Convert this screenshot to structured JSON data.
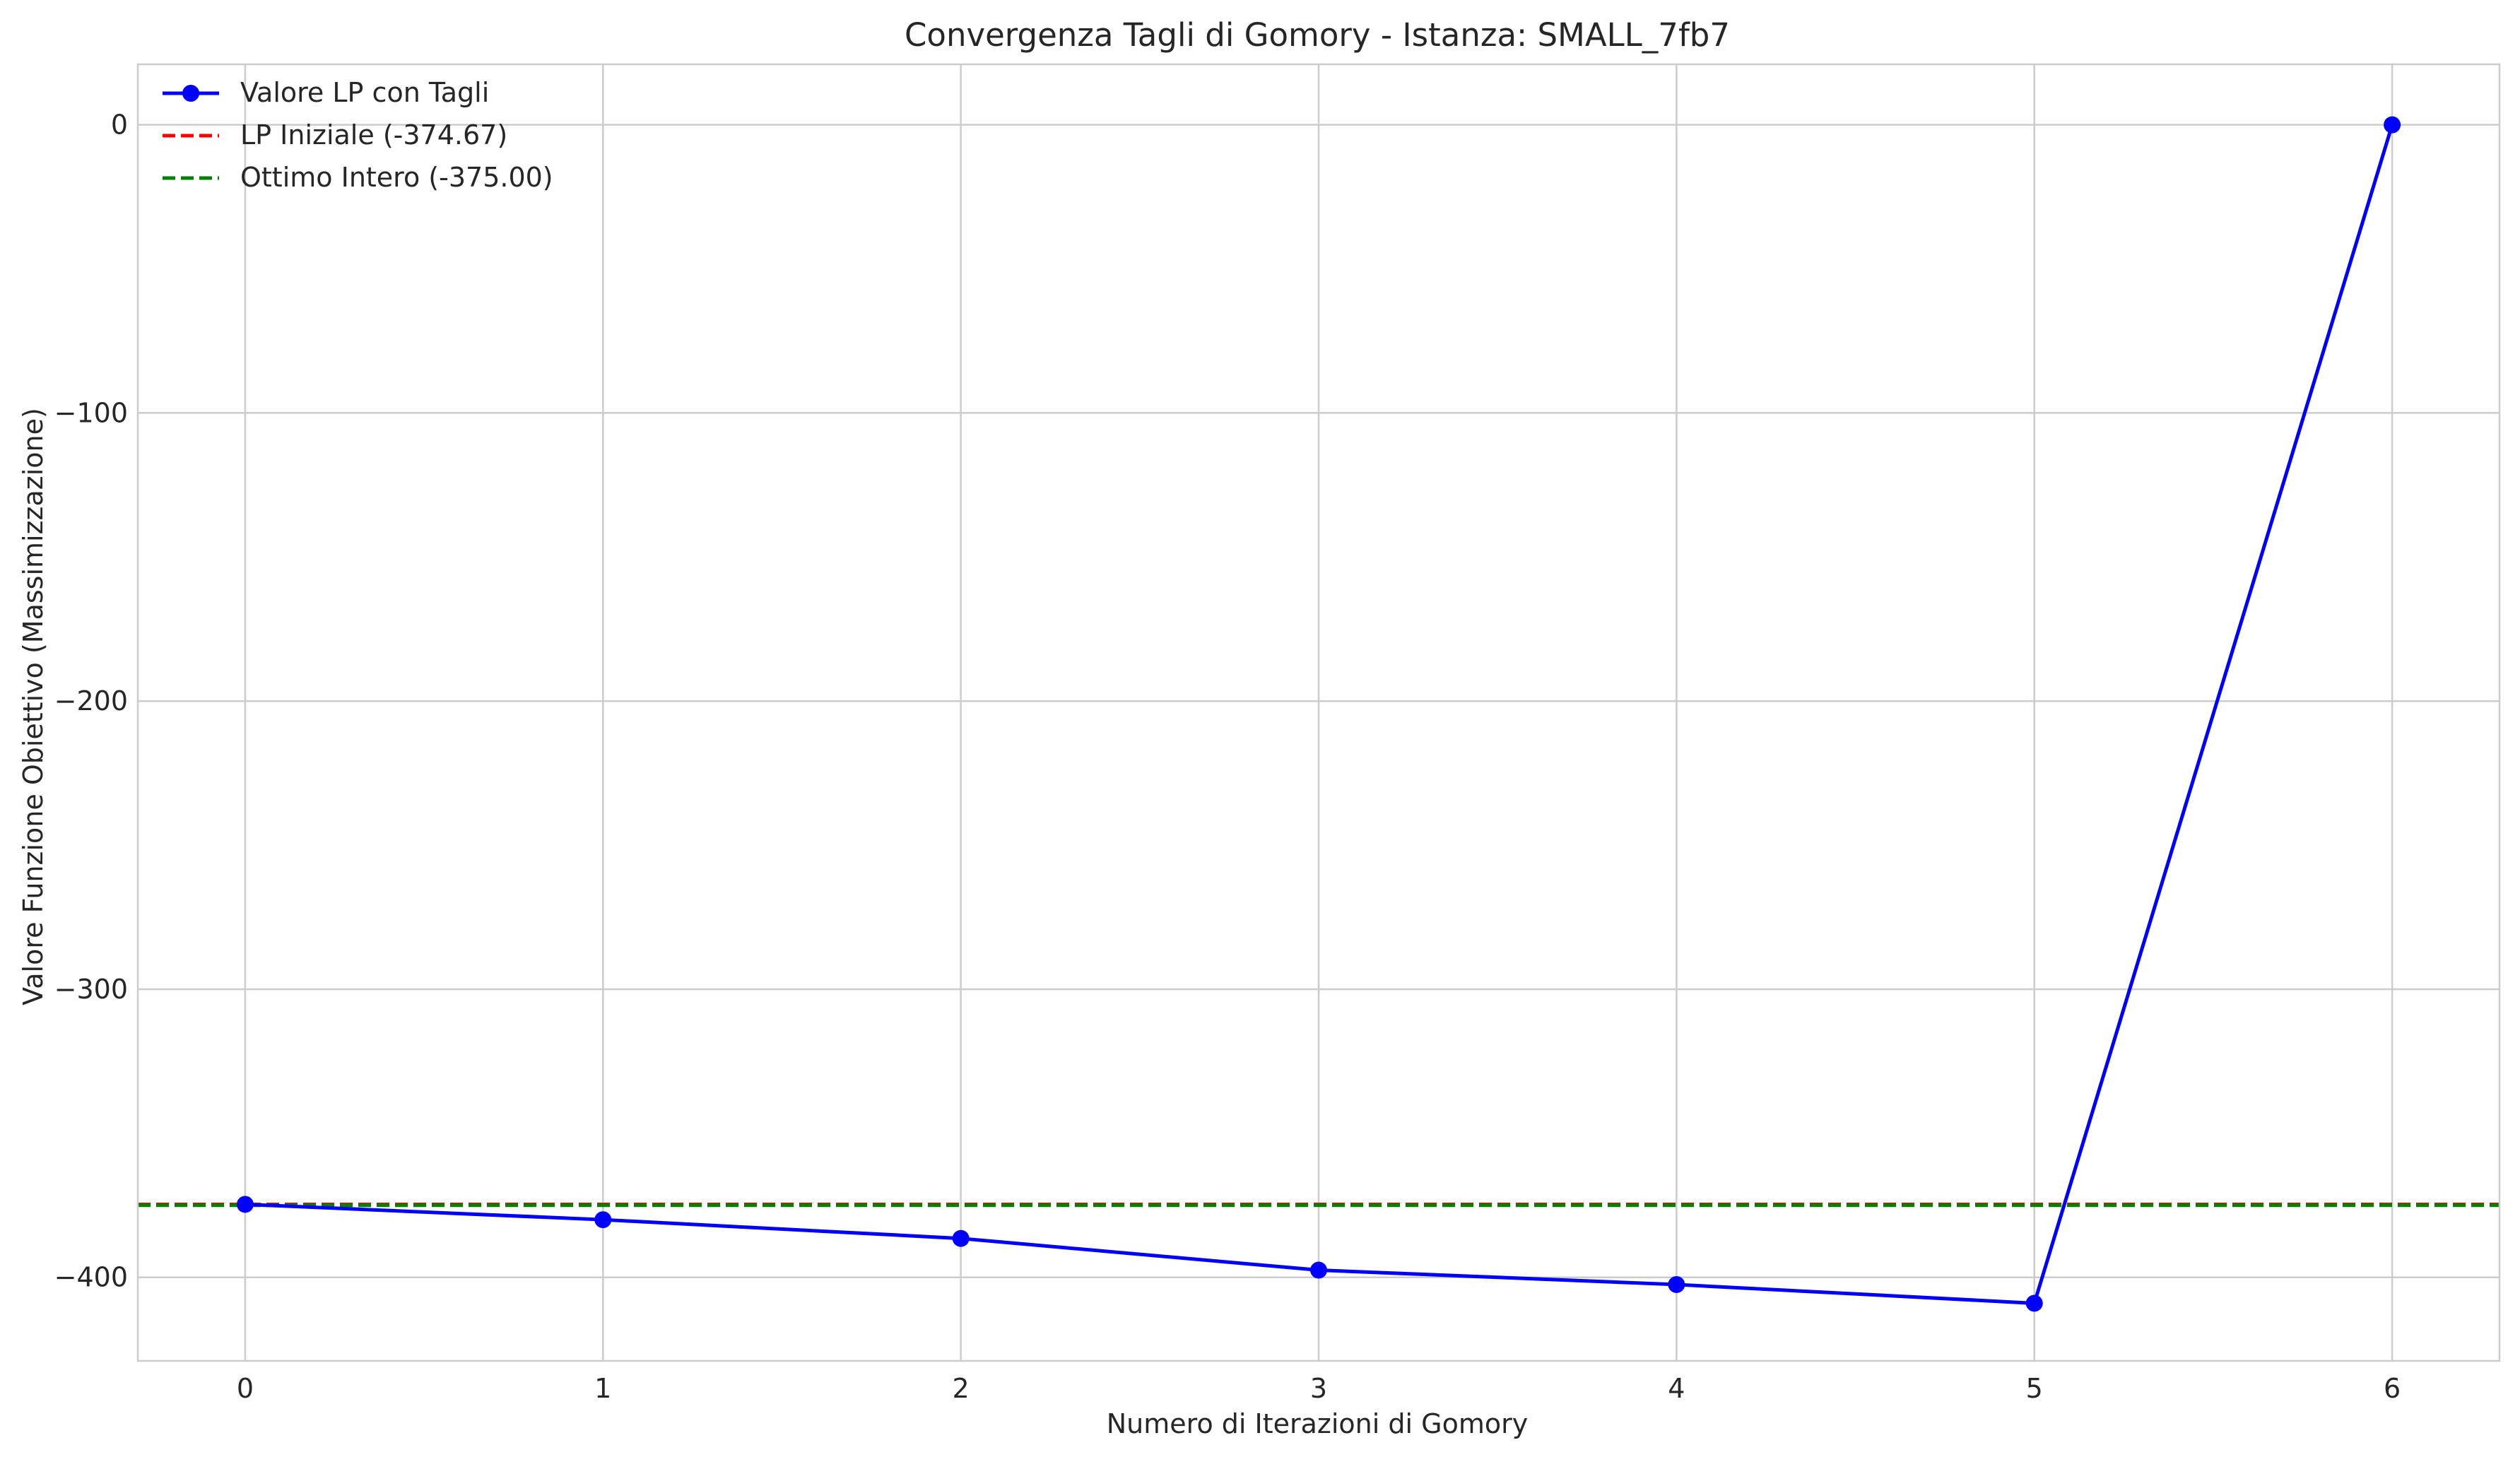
{
  "chart_data": {
    "type": "line",
    "title": "Convergenza Tagli di Gomory - Istanza: SMALL_7fb7",
    "xlabel": "Numero di Iterazioni di Gomory",
    "ylabel": "Valore Funzione Obiettivo (Massimizzazione)",
    "xlim": [
      -0.3,
      6.3
    ],
    "ylim": [
      -429,
      21
    ],
    "x_ticks": [
      0,
      1,
      2,
      3,
      4,
      5,
      6
    ],
    "x_tick_labels": [
      "0",
      "1",
      "2",
      "3",
      "4",
      "5",
      "6"
    ],
    "y_ticks": [
      0,
      -100,
      -200,
      -300,
      -400
    ],
    "y_tick_labels": [
      "0",
      "−100",
      "−200",
      "−300",
      "−400"
    ],
    "grid": true,
    "legend_position": "top-left",
    "series": [
      {
        "name": "Valore LP con Tagli",
        "style": "line-with-markers",
        "color": "#0000ff",
        "x": [
          0,
          1,
          2,
          3,
          4,
          5,
          6
        ],
        "y": [
          -374.67,
          -380,
          -386.5,
          -397.5,
          -402.5,
          -409,
          0
        ]
      }
    ],
    "reference_lines": [
      {
        "name": "LP Iniziale (-374.67)",
        "style": "dashed",
        "color": "#ff0000",
        "y": -374.67
      },
      {
        "name": "Ottimo Intero (-375.00)",
        "style": "dashed",
        "color": "#008000",
        "y": -375.0
      }
    ]
  }
}
